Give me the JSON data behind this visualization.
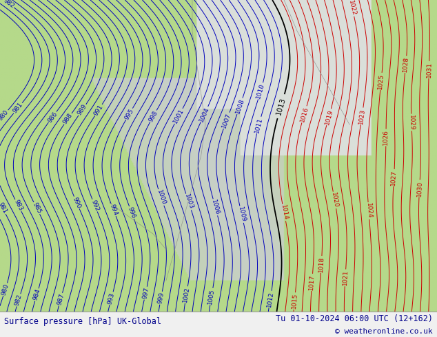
{
  "title_left": "Surface pressure [hPa] UK-Global",
  "title_right": "Tu 01-10-2024 06:00 UTC (12+162)",
  "copyright": "© weatheronline.co.uk",
  "fig_width": 6.34,
  "fig_height": 4.9,
  "dpi": 100,
  "bg_land_green": "#b5d98a",
  "bg_ocean_gray": "#c8cfc8",
  "bg_light_gray": "#d8ddd8",
  "contour_blue": "#0000bb",
  "contour_red": "#cc0000",
  "contour_black": "#000000",
  "contour_coast": "#888888",
  "text_bottom": "#00008b",
  "pressure_min": 980,
  "pressure_max": 1032,
  "label_fontsize": 6.5,
  "title_fontsize": 8.5,
  "copyright_fontsize": 8
}
